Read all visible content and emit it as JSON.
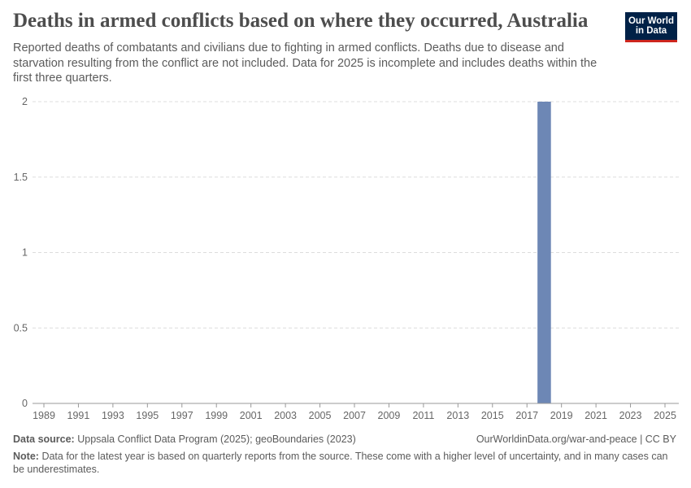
{
  "header": {
    "title": "Deaths in armed conflicts based on where they occurred, Australia",
    "subtitle": "Reported deaths of combatants and civilians due to fighting in armed conflicts. Deaths due to disease and starvation resulting from the conflict are not included. Data for 2025 is incomplete and includes deaths within the first three quarters.",
    "logo_line1": "Our World",
    "logo_line2": "in Data"
  },
  "chart_data": {
    "type": "bar",
    "title": "Deaths in armed conflicts based on where they occurred, Australia",
    "x": [
      1989,
      1990,
      1991,
      1992,
      1993,
      1994,
      1995,
      1996,
      1997,
      1998,
      1999,
      2000,
      2001,
      2002,
      2003,
      2004,
      2005,
      2006,
      2007,
      2008,
      2009,
      2010,
      2011,
      2012,
      2013,
      2014,
      2015,
      2016,
      2017,
      2018,
      2019,
      2020,
      2021,
      2022,
      2023,
      2024,
      2025
    ],
    "values": [
      0,
      0,
      0,
      0,
      0,
      0,
      0,
      0,
      0,
      0,
      0,
      0,
      0,
      0,
      0,
      0,
      0,
      0,
      0,
      0,
      0,
      0,
      0,
      0,
      0,
      0,
      0,
      0,
      0,
      2,
      0,
      0,
      0,
      0,
      0,
      0,
      0
    ],
    "x_ticks": [
      "1989",
      "1991",
      "1993",
      "1995",
      "1997",
      "1999",
      "2001",
      "2003",
      "2005",
      "2007",
      "2009",
      "2011",
      "2013",
      "2015",
      "2017",
      "2019",
      "2021",
      "2023",
      "2025"
    ],
    "y_ticks": [
      "0",
      "0.5",
      "1",
      "1.5",
      "2"
    ],
    "ylim": [
      0,
      2
    ],
    "xlabel": "",
    "ylabel": "",
    "bar_color": "#6d87b5",
    "grid": true
  },
  "footer": {
    "source_label": "Data source:",
    "source_text": "Uppsala Conflict Data Program (2025); geoBoundaries (2023)",
    "link_text": "OurWorldinData.org/war-and-peace | CC BY",
    "note_label": "Note:",
    "note_text": "Data for the latest year is based on quarterly reports from the source. These come with a higher level of uncertainty, and in many cases can be underestimates."
  }
}
